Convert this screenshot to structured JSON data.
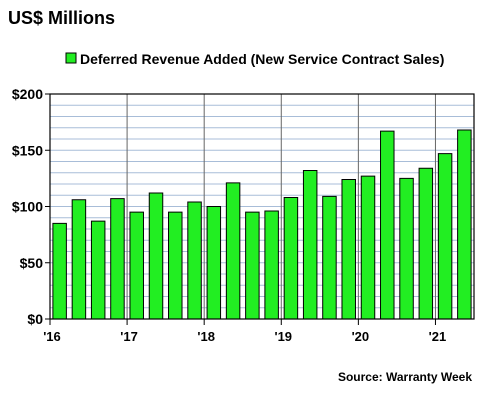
{
  "chart_data": {
    "type": "bar",
    "title": "US$ Millions",
    "legend": {
      "position": "top-right",
      "label": "Deferred Revenue Added (New Service Contract Sales)"
    },
    "source": "Source: Warranty Week",
    "ylim": [
      0,
      200
    ],
    "yticks": [
      0,
      50,
      100,
      150,
      200
    ],
    "ytick_labels": [
      "$0",
      "$50",
      "$100",
      "$150",
      "$200"
    ],
    "grid": true,
    "colors": {
      "bar": "#22ee22",
      "bar_stroke": "#000000",
      "grid": "#a8bdd8",
      "year_divider": "#666666"
    },
    "categories": [
      "Q1 2016",
      "Q2 2016",
      "Q3 2016",
      "Q4 2016",
      "Q1 2017",
      "Q2 2017",
      "Q3 2017",
      "Q4 2017",
      "Q1 2018",
      "Q2 2018",
      "Q3 2018",
      "Q4 2018",
      "Q1 2019",
      "Q2 2019",
      "Q3 2019",
      "Q4 2019",
      "Q1 2020",
      "Q2 2020",
      "Q3 2020",
      "Q4 2020",
      "Q1 2021",
      "Q2 2021"
    ],
    "values": [
      85,
      106,
      87,
      107,
      95,
      112,
      95,
      104,
      100,
      121,
      95,
      96,
      108,
      132,
      109,
      124,
      127,
      167,
      125,
      134,
      147,
      168
    ],
    "year_labels": [
      {
        "label": "'16",
        "start_index": 0
      },
      {
        "label": "'17",
        "start_index": 4
      },
      {
        "label": "'18",
        "start_index": 8
      },
      {
        "label": "'19",
        "start_index": 12
      },
      {
        "label": "'20",
        "start_index": 16
      },
      {
        "label": "'21",
        "start_index": 20
      }
    ]
  }
}
